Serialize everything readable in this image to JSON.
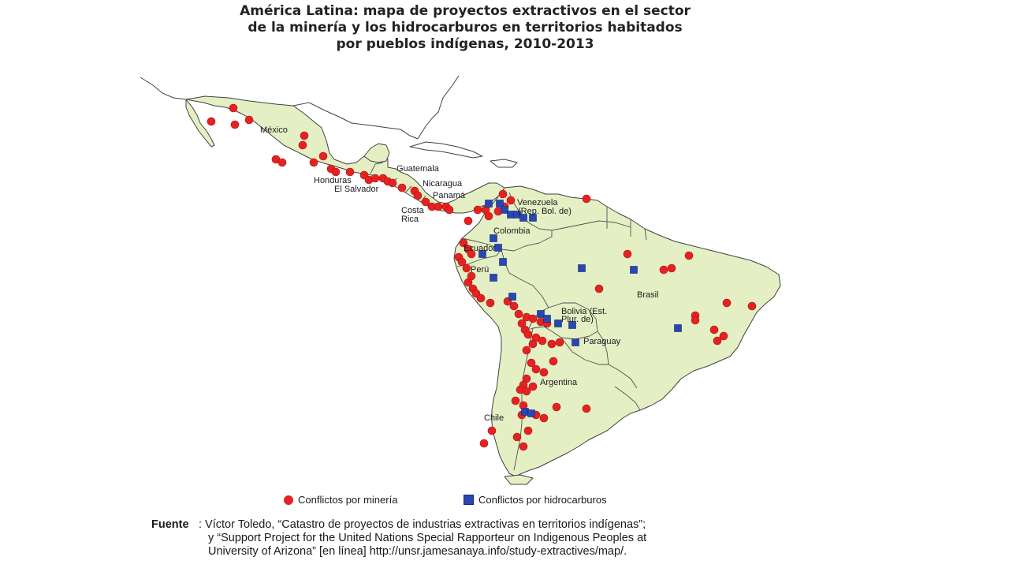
{
  "title_lines": [
    "América Latina: mapa de proyectos extractivos en el sector",
    "de la minería y los hidrocarburos en territorios habitados",
    "por pueblos indígenas, 2010-2013"
  ],
  "colors": {
    "land": "#e4f0c4",
    "border": "#404040",
    "mining": "#e52222",
    "hydrocarbons": "#2a46b0",
    "background": "#ffffff"
  },
  "icons": {
    "mining": "red-circle-marker",
    "hydrocarbons": "blue-square-marker"
  },
  "country_labels": {
    "mexico": "México",
    "guatemala": "Guatemala",
    "honduras": "Honduras",
    "el_salvador": "El Salvador",
    "nicaragua": "Nicaragua",
    "panama": "Panamá",
    "costa_rica_1": "Costa",
    "costa_rica_2": "Rica",
    "venezuela_1": "Venezuela",
    "venezuela_2": "(Rep. Bol. de)",
    "colombia": "Colombia",
    "ecuador": "Ecuador",
    "peru": "Perú",
    "brasil": "Brasil",
    "bolivia_1": "Bolivia (Est.",
    "bolivia_2": "Plur. de)",
    "paraguay": "Paraguay",
    "argentina": "Argentina",
    "chile": "Chile"
  },
  "legend": {
    "mining": "Conflictos por minería",
    "hydrocarbons": "Conflictos por hidrocarburos"
  },
  "source": {
    "label": "Fuente",
    "lines": [
      ":    Víctor Toledo, “Catastro de proyectos de industrias extractivas en territorios indígenas”;",
      "y “Support Project for the United Nations Special Rapporteur on Indigenous Peoples at",
      "University of Arizona” [en línea] http://unsr.jamesanaya.info/study-extractives/map/."
    ]
  }
}
